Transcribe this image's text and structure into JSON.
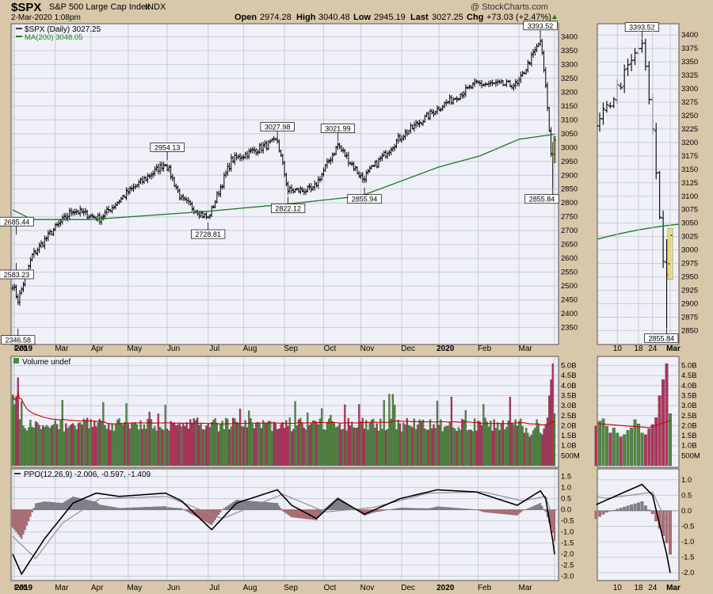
{
  "header": {
    "symbol": "$SPX",
    "name": "S&P 500 Large Cap Index",
    "exchange": "INDX",
    "watermark": "@ StockCharts.com",
    "datetime": "2-Mar-2020 1:08pm",
    "open_label": "Open",
    "open": "2974.28",
    "high_label": "High",
    "high": "3040.48",
    "low_label": "Low",
    "low": "2945.19",
    "last_label": "Last",
    "last": "3027.25",
    "chg_label": "Chg",
    "chg": "+73.03 (+2.47%)"
  },
  "colors": {
    "background": "#d8c8a9",
    "panel": "#eff0f8",
    "grid": "#c8cbd8",
    "price_bar": "#000000",
    "ma200": "#1e7a1e",
    "volume_up": "#4e8a3e",
    "volume_down": "#b6305a",
    "volume_ma": "#cc0000",
    "ppo_line": "#000000",
    "ppo_signal": "#888888",
    "histogram_pos": "#7f7f92",
    "histogram_neg": "#b46a72",
    "current_day": "#ffee66"
  },
  "chart_data": [
    {
      "type": "ohlc",
      "panel": "price",
      "title": "$SPX (Daily) 3027.25",
      "legend": [
        "$SPX (Daily) 3027.25",
        "MA(200) 3048.05"
      ],
      "ylim": [
        2300,
        3430
      ],
      "yticks": [
        2350,
        2400,
        2450,
        2500,
        2550,
        2600,
        2650,
        2700,
        2750,
        2800,
        2850,
        2900,
        2950,
        3000,
        3050,
        3100,
        3150,
        3200,
        3250,
        3300,
        3350,
        3400
      ],
      "xticks": [
        "2019",
        "Feb",
        "Mar",
        "Apr",
        "May",
        "Jun",
        "Jul",
        "Aug",
        "Sep",
        "Oct",
        "Nov",
        "Dec",
        "2020",
        "Feb",
        "Mar"
      ],
      "series_close": [
        {
          "d": "2018-12-31",
          "v": 2506
        },
        {
          "d": "2019-01-03",
          "v": 2448
        },
        {
          "d": "2019-01-15",
          "v": 2610
        },
        {
          "d": "2019-01-31",
          "v": 2704
        },
        {
          "d": "2019-02-15",
          "v": 2775
        },
        {
          "d": "2019-03-08",
          "v": 2743
        },
        {
          "d": "2019-03-29",
          "v": 2834
        },
        {
          "d": "2019-04-30",
          "v": 2945
        },
        {
          "d": "2019-05-13",
          "v": 2812
        },
        {
          "d": "2019-06-03",
          "v": 2744
        },
        {
          "d": "2019-06-20",
          "v": 2954
        },
        {
          "d": "2019-07-26",
          "v": 3025
        },
        {
          "d": "2019-08-05",
          "v": 2844
        },
        {
          "d": "2019-08-23",
          "v": 2847
        },
        {
          "d": "2019-09-12",
          "v": 3009
        },
        {
          "d": "2019-10-02",
          "v": 2887
        },
        {
          "d": "2019-10-31",
          "v": 3037
        },
        {
          "d": "2019-11-29",
          "v": 3141
        },
        {
          "d": "2019-12-31",
          "v": 3230
        },
        {
          "d": "2020-01-31",
          "v": 3226
        },
        {
          "d": "2020-02-19",
          "v": 3386
        },
        {
          "d": "2020-02-24",
          "v": 3225
        },
        {
          "d": "2020-02-27",
          "v": 2979
        },
        {
          "d": "2020-02-28",
          "v": 2954
        },
        {
          "d": "2020-03-02",
          "v": 3027
        }
      ],
      "ma200": [
        {
          "d": "2018-12-31",
          "v": 2775
        },
        {
          "d": "2019-01-15",
          "v": 2740
        },
        {
          "d": "2019-03-01",
          "v": 2740
        },
        {
          "d": "2019-06-03",
          "v": 2770
        },
        {
          "d": "2019-08-01",
          "v": 2795
        },
        {
          "d": "2019-10-01",
          "v": 2825
        },
        {
          "d": "2019-12-02",
          "v": 2930
        },
        {
          "d": "2020-01-02",
          "v": 2970
        },
        {
          "d": "2020-02-03",
          "v": 3030
        },
        {
          "d": "2020-03-02",
          "v": 3048
        }
      ],
      "annotations": [
        {
          "d": "2019-01-02",
          "v": 2685.44,
          "label": "2685.44",
          "pos": "above"
        },
        {
          "d": "2019-01-02",
          "v": 2583.23,
          "label": "2583.23",
          "pos": "below"
        },
        {
          "d": "2019-01-03",
          "v": 2346.58,
          "label": "2346.58",
          "pos": "below"
        },
        {
          "d": "2019-05-01",
          "v": 2954.13,
          "label": "2954.13",
          "pos": "above"
        },
        {
          "d": "2019-06-03",
          "v": 2728.81,
          "label": "2728.81",
          "pos": "below"
        },
        {
          "d": "2019-07-26",
          "v": 3027.98,
          "label": "3027.98",
          "pos": "above"
        },
        {
          "d": "2019-08-05",
          "v": 2822.12,
          "label": "2822.12",
          "pos": "below"
        },
        {
          "d": "2019-09-12",
          "v": 3021.99,
          "label": "3021.99",
          "pos": "above"
        },
        {
          "d": "2019-10-03",
          "v": 2855.94,
          "label": "2855.94",
          "pos": "below"
        },
        {
          "d": "2020-02-19",
          "v": 3393.52,
          "label": "3393.52",
          "pos": "above"
        },
        {
          "d": "2020-02-28",
          "v": 2855.84,
          "label": "2855.84",
          "pos": "below"
        }
      ]
    },
    {
      "type": "ohlc",
      "panel": "price-zoom",
      "ylim": [
        2830,
        3415
      ],
      "yticks": [
        2850,
        2875,
        2900,
        2925,
        2950,
        2975,
        3000,
        3025,
        3050,
        3075,
        3100,
        3125,
        3150,
        3175,
        3200,
        3225,
        3250,
        3275,
        3300,
        3325,
        3350,
        3375,
        3400
      ],
      "xticks": [
        "10",
        "18",
        "24",
        "Mar"
      ],
      "ma200_range": [
        3020,
        3048
      ],
      "annotations": [
        {
          "label": "3393.52",
          "pos": "above"
        },
        {
          "label": "2855.84",
          "pos": "below"
        }
      ]
    },
    {
      "type": "bar",
      "panel": "volume",
      "title": "Volume undef",
      "ylim": [
        0,
        5.3
      ],
      "yticks": [
        "500M",
        "1.0B",
        "1.5B",
        "2.0B",
        "2.5B",
        "3.0B",
        "3.5B",
        "4.0B",
        "4.5B",
        "5.0B"
      ],
      "approx_range_B": [
        1.5,
        5.1
      ],
      "recent_spike_B": [
        3.5,
        4.3,
        5.1
      ],
      "ma_level_B": [
        2.1,
        1.9
      ]
    },
    {
      "type": "line",
      "panel": "ppo",
      "title": "PPO(12,26,9) -2.006, -0.597, -1.409",
      "series": [
        {
          "name": "PPO",
          "points": [
            {
              "d": "2018-12-31",
              "v": -2.0
            },
            {
              "d": "2019-01-07",
              "v": -2.9
            },
            {
              "d": "2019-01-24",
              "v": -1.3
            },
            {
              "d": "2019-02-15",
              "v": 0.3
            },
            {
              "d": "2019-03-06",
              "v": 0.75
            },
            {
              "d": "2019-03-25",
              "v": 0.6
            },
            {
              "d": "2019-04-30",
              "v": 0.75
            },
            {
              "d": "2019-05-13",
              "v": 0.4
            },
            {
              "d": "2019-06-05",
              "v": -0.9
            },
            {
              "d": "2019-06-25",
              "v": 0.3
            },
            {
              "d": "2019-07-26",
              "v": 0.9
            },
            {
              "d": "2019-08-07",
              "v": 0.2
            },
            {
              "d": "2019-08-27",
              "v": -0.4
            },
            {
              "d": "2019-09-12",
              "v": 0.5
            },
            {
              "d": "2019-10-03",
              "v": -0.2
            },
            {
              "d": "2019-10-31",
              "v": 0.5
            },
            {
              "d": "2019-11-29",
              "v": 0.9
            },
            {
              "d": "2019-12-31",
              "v": 0.8
            },
            {
              "d": "2020-01-31",
              "v": 0.2
            },
            {
              "d": "2020-02-19",
              "v": 0.85
            },
            {
              "d": "2020-02-24",
              "v": 0.5
            },
            {
              "d": "2020-02-28",
              "v": -1.4
            },
            {
              "d": "2020-03-02",
              "v": -2.006
            }
          ]
        },
        {
          "name": "Signal",
          "points": [
            {
              "d": "2018-12-31",
              "v": -1.2
            },
            {
              "d": "2019-01-17",
              "v": -2.2
            },
            {
              "d": "2019-02-07",
              "v": -0.6
            },
            {
              "d": "2019-03-08",
              "v": 0.5
            },
            {
              "d": "2019-05-01",
              "v": 0.6
            },
            {
              "d": "2019-06-13",
              "v": -0.4
            },
            {
              "d": "2019-07-31",
              "v": 0.7
            },
            {
              "d": "2019-09-03",
              "v": -0.1
            },
            {
              "d": "2019-10-10",
              "v": 0.1
            },
            {
              "d": "2019-11-22",
              "v": 0.75
            },
            {
              "d": "2020-01-06",
              "v": 0.8
            },
            {
              "d": "2020-02-05",
              "v": 0.4
            },
            {
              "d": "2020-02-24",
              "v": 0.6
            },
            {
              "d": "2020-03-02",
              "v": -0.597
            }
          ]
        },
        {
          "name": "Histogram",
          "last": -1.409
        }
      ],
      "ylim": [
        -3.05,
        1.7
      ],
      "yticks": [
        "1.5",
        "1.0",
        "0.5",
        "0.0",
        "-0.5",
        "-1.0",
        "-1.5",
        "-2.0",
        "-2.5",
        "-3.0"
      ],
      "zoom_yticks": [
        "1.0",
        "0.5",
        "0.0",
        "-0.5",
        "-1.0",
        "-1.5",
        "-2.0"
      ]
    }
  ]
}
